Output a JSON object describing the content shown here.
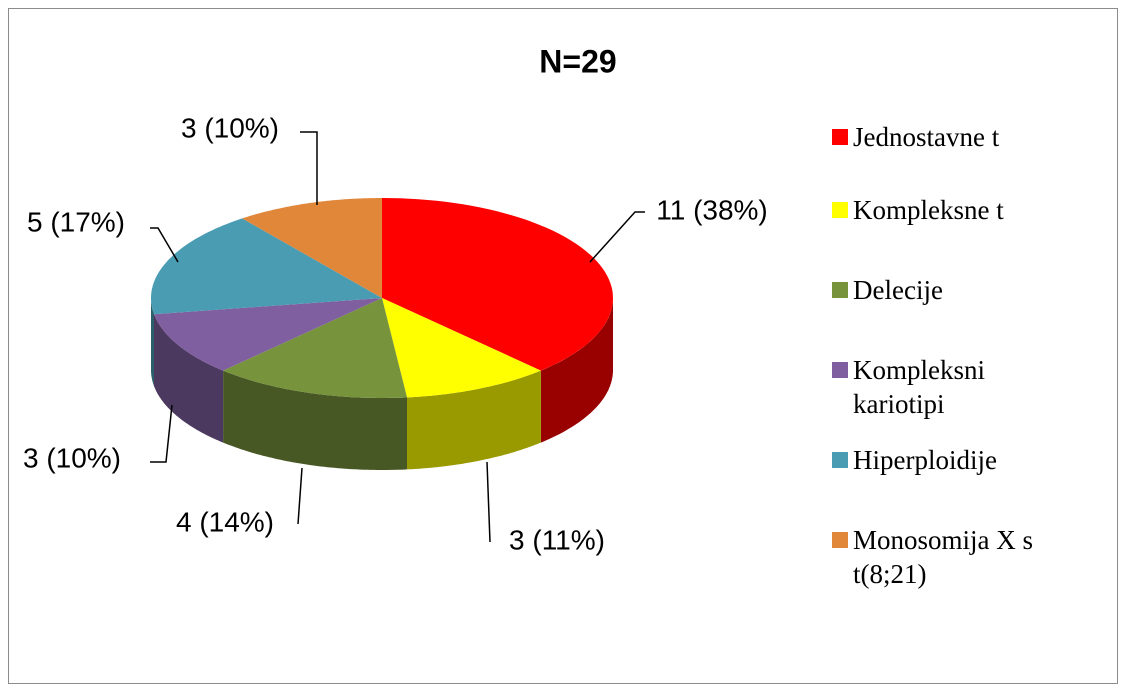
{
  "chart_data": {
    "type": "pie3d",
    "title": "N=29",
    "categories": [
      "Jednostavne t",
      "Kompleksne t",
      "Delecije",
      "Kompleksni kariotipi",
      "Hiperploidije",
      "Monosomija X s t(8;21)"
    ],
    "values": [
      11,
      3,
      4,
      3,
      5,
      3
    ],
    "value_labels": [
      "11 (38%)",
      "3 (11%)",
      "4 (14%)",
      "3 (10%)",
      "5 (17%)",
      "3 (10%)"
    ],
    "colors": [
      "#ff0000",
      "#ffff00",
      "#77933c",
      "#7f5f9f",
      "#4a9cb3",
      "#e0873a"
    ],
    "legend": "right"
  }
}
